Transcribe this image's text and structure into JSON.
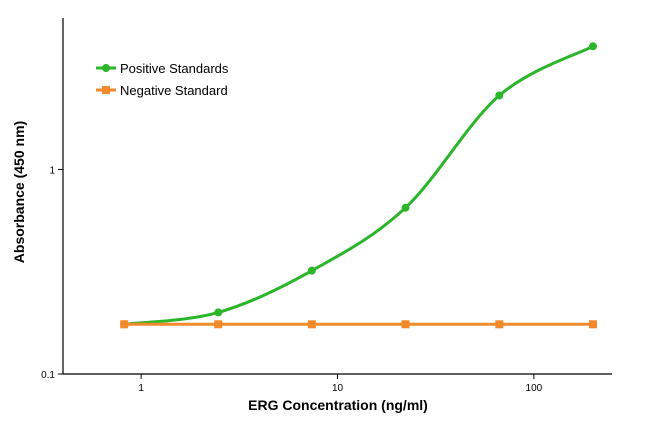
{
  "chart_data": {
    "type": "line",
    "xlabel": "ERG Concentration (ng/ml)",
    "ylabel": "Absorbance (450 nm)",
    "xscale": "log",
    "yscale": "log",
    "xlim": [
      0.4,
      250
    ],
    "ylim": [
      0.1,
      5.5
    ],
    "xticks": [
      1,
      10,
      100
    ],
    "xtick_labels": [
      "1",
      "10",
      "100"
    ],
    "yticks": [
      0.1,
      1
    ],
    "ytick_labels": [
      "0.1",
      "1"
    ],
    "grid": false,
    "legend_position": "top-left",
    "series": [
      {
        "name": "Positive Standards",
        "color": "#2bb52b",
        "marker": "circle",
        "x": [
          0.82,
          2.47,
          7.4,
          22.2,
          66.7,
          200
        ],
        "y": [
          0.175,
          0.2,
          0.32,
          0.65,
          2.3,
          4.0
        ]
      },
      {
        "name": "Negative Standard",
        "color": "#f28a2b",
        "marker": "square",
        "x": [
          0.82,
          2.47,
          7.4,
          22.2,
          66.7,
          200
        ],
        "y": [
          0.175,
          0.175,
          0.175,
          0.175,
          0.175,
          0.175
        ]
      }
    ]
  }
}
